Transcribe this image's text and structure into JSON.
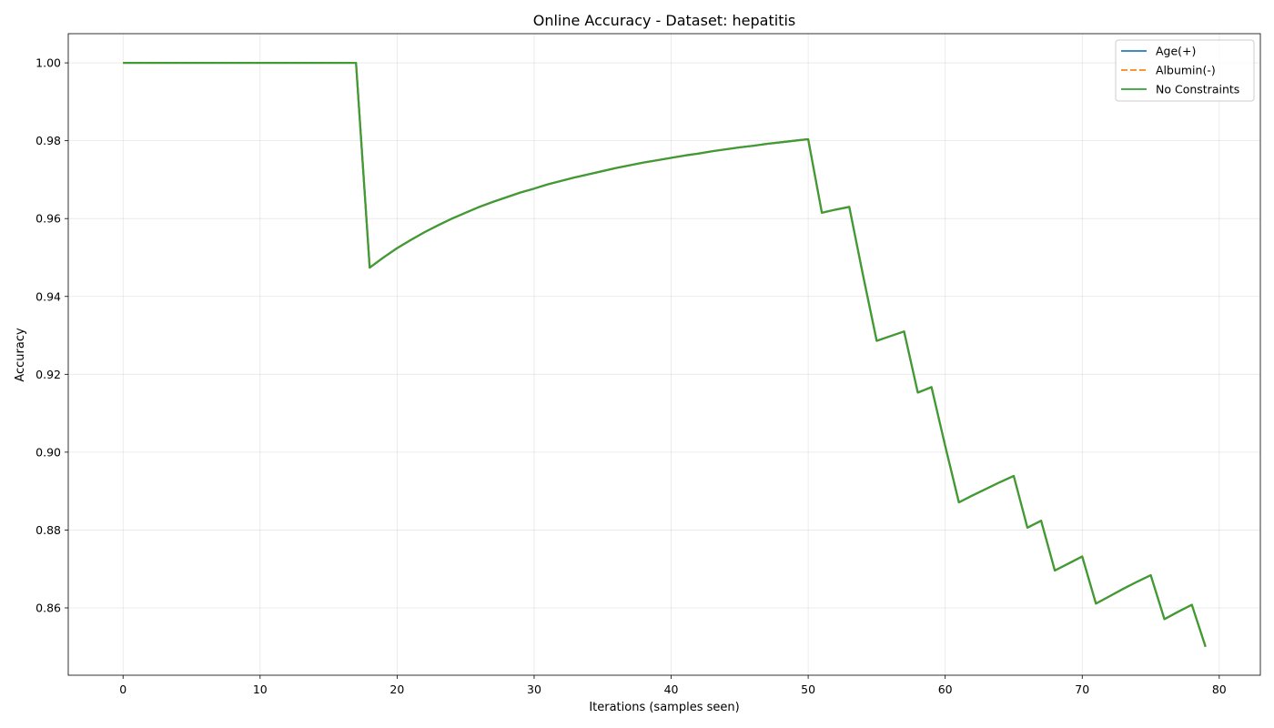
{
  "chart_data": {
    "type": "line",
    "title": "Online Accuracy - Dataset: hepatitis",
    "xlabel": "Iterations (samples seen)",
    "ylabel": "Accuracy",
    "xlim": [
      -4,
      83
    ],
    "ylim": [
      0.8427,
      1.0075
    ],
    "xticks": [
      "0",
      "10",
      "20",
      "30",
      "40",
      "50",
      "60",
      "70",
      "80"
    ],
    "yticks": [
      "0.86",
      "0.88",
      "0.90",
      "0.92",
      "0.94",
      "0.96",
      "0.98",
      "1.00"
    ],
    "grid": true,
    "legend_position": "top-right",
    "x": [
      0,
      1,
      2,
      3,
      4,
      5,
      6,
      7,
      8,
      9,
      10,
      11,
      12,
      13,
      14,
      15,
      16,
      17,
      18,
      19,
      20,
      21,
      22,
      23,
      24,
      25,
      26,
      27,
      28,
      29,
      30,
      31,
      32,
      33,
      34,
      35,
      36,
      37,
      38,
      39,
      40,
      41,
      42,
      43,
      44,
      45,
      46,
      47,
      48,
      49,
      50,
      51,
      52,
      53,
      54,
      55,
      56,
      57,
      58,
      59,
      60,
      61,
      62,
      63,
      64,
      65,
      66,
      67,
      68,
      69,
      70,
      71,
      72,
      73,
      74,
      75,
      76,
      77,
      78,
      79
    ],
    "series": [
      {
        "name": "Age(+)",
        "color": "#1f77b4",
        "dash": "solid",
        "values": [
          1.0,
          1.0,
          1.0,
          1.0,
          1.0,
          1.0,
          1.0,
          1.0,
          1.0,
          1.0,
          1.0,
          1.0,
          1.0,
          1.0,
          1.0,
          1.0,
          1.0,
          1.0,
          0.9474,
          0.95,
          0.9524,
          0.9545,
          0.9565,
          0.9583,
          0.96,
          0.9615,
          0.963,
          0.9643,
          0.9655,
          0.9667,
          0.9677,
          0.9688,
          0.9697,
          0.9706,
          0.9714,
          0.9722,
          0.973,
          0.9737,
          0.9744,
          0.975,
          0.9756,
          0.9762,
          0.9767,
          0.9773,
          0.9778,
          0.9783,
          0.9787,
          0.9792,
          0.9796,
          0.98,
          0.9804,
          0.9615,
          0.9623,
          0.963,
          0.9455,
          0.9286,
          0.9298,
          0.931,
          0.9153,
          0.9167,
          0.9016,
          0.8871,
          0.8889,
          0.8906,
          0.8923,
          0.8939,
          0.8806,
          0.8824,
          0.8696,
          0.8714,
          0.8732,
          0.8611,
          0.863,
          0.8649,
          0.8667,
          0.8684,
          0.8571,
          0.859,
          0.8608,
          0.85
        ]
      },
      {
        "name": "Albumin(-)",
        "color": "#ff7f0e",
        "dash": "dashed",
        "values": [
          1.0,
          1.0,
          1.0,
          1.0,
          1.0,
          1.0,
          1.0,
          1.0,
          1.0,
          1.0,
          1.0,
          1.0,
          1.0,
          1.0,
          1.0,
          1.0,
          1.0,
          1.0,
          0.9474,
          0.95,
          0.9524,
          0.9545,
          0.9565,
          0.9583,
          0.96,
          0.9615,
          0.963,
          0.9643,
          0.9655,
          0.9667,
          0.9677,
          0.9688,
          0.9697,
          0.9706,
          0.9714,
          0.9722,
          0.973,
          0.9737,
          0.9744,
          0.975,
          0.9756,
          0.9762,
          0.9767,
          0.9773,
          0.9778,
          0.9783,
          0.9787,
          0.9792,
          0.9796,
          0.98,
          0.9804,
          0.9615,
          0.9623,
          0.963,
          0.9455,
          0.9286,
          0.9298,
          0.931,
          0.9153,
          0.9167,
          0.9016,
          0.8871,
          0.8889,
          0.8906,
          0.8923,
          0.8939,
          0.8806,
          0.8824,
          0.8696,
          0.8714,
          0.8732,
          0.8611,
          0.863,
          0.8649,
          0.8667,
          0.8684,
          0.8571,
          0.859,
          0.8608,
          0.85
        ]
      },
      {
        "name": "No Constraints",
        "color": "#2ca02c",
        "dash": "solid",
        "values": [
          1.0,
          1.0,
          1.0,
          1.0,
          1.0,
          1.0,
          1.0,
          1.0,
          1.0,
          1.0,
          1.0,
          1.0,
          1.0,
          1.0,
          1.0,
          1.0,
          1.0,
          1.0,
          0.9474,
          0.95,
          0.9524,
          0.9545,
          0.9565,
          0.9583,
          0.96,
          0.9615,
          0.963,
          0.9643,
          0.9655,
          0.9667,
          0.9677,
          0.9688,
          0.9697,
          0.9706,
          0.9714,
          0.9722,
          0.973,
          0.9737,
          0.9744,
          0.975,
          0.9756,
          0.9762,
          0.9767,
          0.9773,
          0.9778,
          0.9783,
          0.9787,
          0.9792,
          0.9796,
          0.98,
          0.9804,
          0.9615,
          0.9623,
          0.963,
          0.9455,
          0.9286,
          0.9298,
          0.931,
          0.9153,
          0.9167,
          0.9016,
          0.8871,
          0.8889,
          0.8906,
          0.8923,
          0.8939,
          0.8806,
          0.8824,
          0.8696,
          0.8714,
          0.8732,
          0.8611,
          0.863,
          0.8649,
          0.8667,
          0.8684,
          0.8571,
          0.859,
          0.8608,
          0.85
        ]
      }
    ]
  }
}
